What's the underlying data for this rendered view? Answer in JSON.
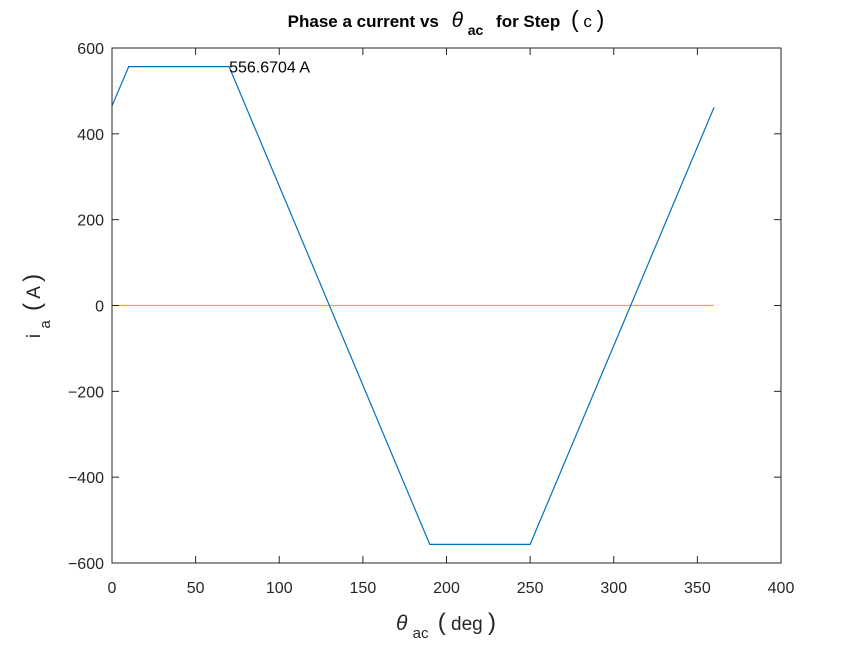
{
  "chart_data": {
    "type": "line",
    "title": {
      "prefix": "Phase  a  current  vs",
      "theta": "θ",
      "sub": "ac",
      "suffix": "for  Step",
      "paren_open": "(",
      "paren_text": "c",
      "paren_close": ")"
    },
    "xlabel": {
      "theta": "θ",
      "sub": "ac",
      "paren_open": "(",
      "unit": "deg",
      "paren_close": ")"
    },
    "ylabel": {
      "main": "i",
      "sub": "a",
      "paren_open": "(",
      "unit": "A",
      "paren_close": ")"
    },
    "xlim": [
      0,
      400
    ],
    "ylim": [
      -600,
      600
    ],
    "xticks": [
      0,
      50,
      100,
      150,
      200,
      250,
      300,
      350,
      400
    ],
    "yticks": [
      600,
      400,
      200,
      0,
      -200,
      -400,
      -600
    ],
    "ytick_labels": [
      "600",
      "400",
      "200",
      "0",
      "−200",
      "−400",
      "−600"
    ],
    "grid": false,
    "series": [
      {
        "color": "#0072bd",
        "x": [
          0,
          10,
          70,
          190,
          250,
          360
        ],
        "y": [
          465,
          556.67,
          556.67,
          -556.67,
          -556.67,
          462
        ]
      },
      {
        "color": "#edb120",
        "x": [
          0,
          360
        ],
        "y": [
          0,
          0
        ]
      }
    ],
    "annotations": [
      {
        "text": "556.6704  A",
        "x": 70,
        "y": 556.67
      }
    ]
  }
}
